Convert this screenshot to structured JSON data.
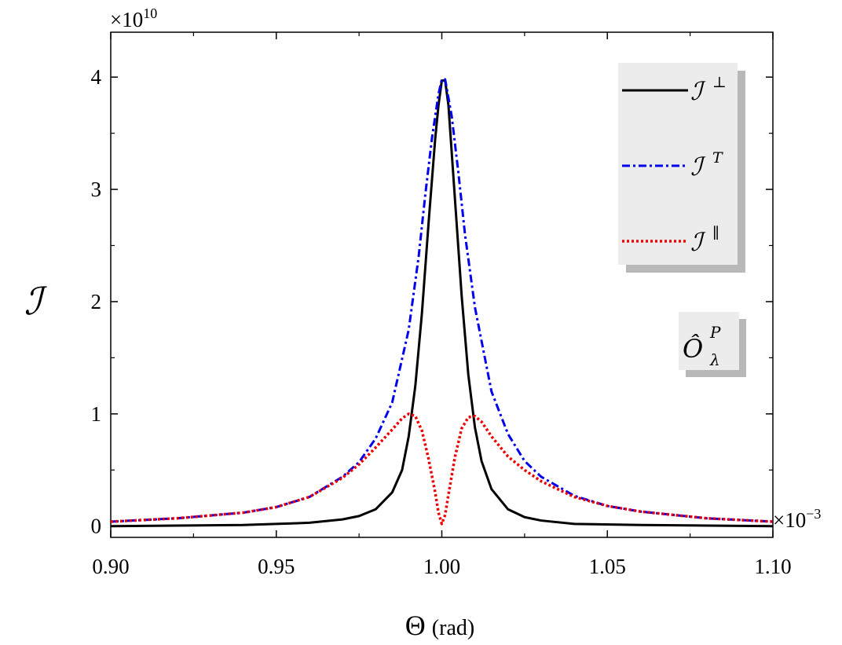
{
  "chart_data": {
    "type": "line",
    "title": "",
    "xlabel_symbol": "Θ",
    "xlabel_unit": "(rad)",
    "ylabel": "ℐ",
    "x_multiplier": {
      "base": "×10",
      "exponent": "−3"
    },
    "y_multiplier": {
      "base": "×10",
      "exponent": "10"
    },
    "xlim": [
      0.9,
      1.1
    ],
    "ylim": [
      -0.1,
      4.4
    ],
    "x_ticks": [
      0.9,
      0.95,
      1.0,
      1.05,
      1.1
    ],
    "x_tick_labels": [
      "0.90",
      "0.95",
      "1.00",
      "1.05",
      "1.10"
    ],
    "y_ticks": [
      0,
      1,
      2,
      3,
      4
    ],
    "y_tick_labels": [
      "0",
      "1",
      "2",
      "3",
      "4"
    ],
    "grid": false,
    "legend_position": "top-right",
    "annotation": {
      "main": "Ô",
      "sup": "P",
      "sub": "λ"
    },
    "series": [
      {
        "name": "ℐ",
        "name_sup": "⊥",
        "style": "solid",
        "color": "#000000",
        "x": [
          0.9,
          0.92,
          0.94,
          0.96,
          0.97,
          0.975,
          0.98,
          0.985,
          0.988,
          0.99,
          0.992,
          0.994,
          0.996,
          0.998,
          0.999,
          1.0,
          1.001,
          1.002,
          1.004,
          1.006,
          1.008,
          1.01,
          1.012,
          1.015,
          1.02,
          1.025,
          1.03,
          1.04,
          1.06,
          1.08,
          1.1
        ],
        "values": [
          0.0,
          0.005,
          0.01,
          0.03,
          0.06,
          0.09,
          0.15,
          0.3,
          0.5,
          0.8,
          1.25,
          1.9,
          2.7,
          3.45,
          3.75,
          3.97,
          3.97,
          3.75,
          2.9,
          2.05,
          1.35,
          0.88,
          0.58,
          0.33,
          0.15,
          0.08,
          0.05,
          0.02,
          0.01,
          0.005,
          0.0
        ]
      },
      {
        "name": "ℐ",
        "name_sup": "T",
        "style": "dash-dot",
        "color": "#0000ee",
        "x": [
          0.9,
          0.92,
          0.94,
          0.95,
          0.96,
          0.97,
          0.975,
          0.98,
          0.985,
          0.99,
          0.993,
          0.995,
          0.997,
          0.999,
          1.0,
          1.001,
          1.003,
          1.005,
          1.007,
          1.01,
          1.015,
          1.02,
          1.025,
          1.03,
          1.04,
          1.05,
          1.06,
          1.08,
          1.1
        ],
        "values": [
          0.04,
          0.07,
          0.12,
          0.17,
          0.26,
          0.44,
          0.57,
          0.78,
          1.1,
          1.75,
          2.4,
          2.95,
          3.45,
          3.85,
          3.98,
          3.98,
          3.65,
          3.15,
          2.6,
          1.95,
          1.2,
          0.82,
          0.58,
          0.44,
          0.27,
          0.18,
          0.13,
          0.07,
          0.04
        ]
      },
      {
        "name": "ℐ",
        "name_sup": "∥",
        "style": "dotted",
        "color": "#ee0000",
        "x": [
          0.9,
          0.92,
          0.94,
          0.95,
          0.96,
          0.97,
          0.975,
          0.98,
          0.985,
          0.988,
          0.99,
          0.992,
          0.994,
          0.996,
          0.998,
          0.999,
          1.0,
          1.001,
          1.002,
          1.004,
          1.006,
          1.008,
          1.01,
          1.012,
          1.015,
          1.02,
          1.025,
          1.03,
          1.04,
          1.05,
          1.06,
          1.08,
          1.1
        ],
        "values": [
          0.04,
          0.07,
          0.12,
          0.17,
          0.26,
          0.43,
          0.55,
          0.7,
          0.86,
          0.96,
          1.0,
          0.98,
          0.85,
          0.6,
          0.3,
          0.12,
          0.02,
          0.1,
          0.28,
          0.62,
          0.87,
          0.97,
          0.98,
          0.93,
          0.8,
          0.62,
          0.5,
          0.4,
          0.26,
          0.18,
          0.13,
          0.07,
          0.04
        ]
      }
    ]
  }
}
